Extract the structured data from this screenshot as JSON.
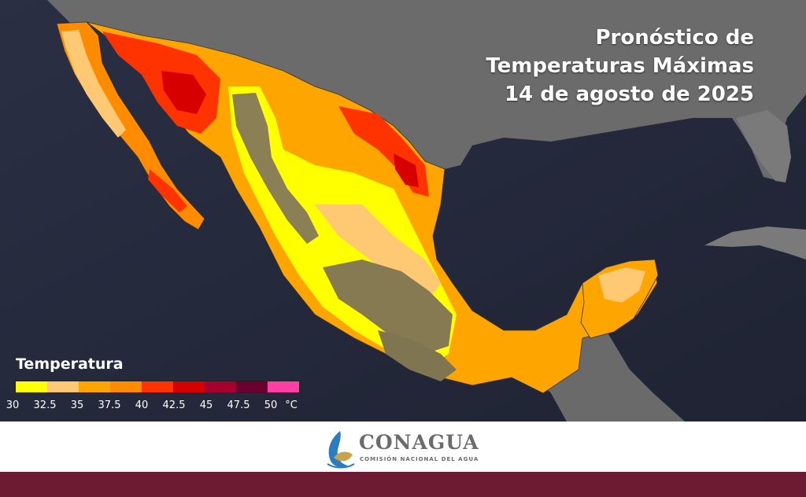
{
  "title": {
    "line1": "Pronóstico de",
    "line2": "Temperaturas Máximas",
    "line3": "14 de agosto de 2025"
  },
  "legend": {
    "title": "Temperatura",
    "colors": [
      "#ffff00",
      "#ffc873",
      "#ffa500",
      "#ff8c00",
      "#ff3300",
      "#d60000",
      "#a5002e",
      "#6a0030",
      "#ff3fa6"
    ],
    "labels": [
      "30",
      "32.5",
      "35",
      "37.5",
      "40",
      "42.5",
      "45",
      "47.5",
      "50"
    ],
    "unit": "°C"
  },
  "logo": {
    "name": "CONAGUA",
    "subtitle": "COMISIÓN NACIONAL DEL AGUA"
  },
  "colors": {
    "ocean": "#24283a",
    "land_gray": "#6f6f6f",
    "terrain": "#8a7f55",
    "brand_bar": "#6d1a33"
  }
}
